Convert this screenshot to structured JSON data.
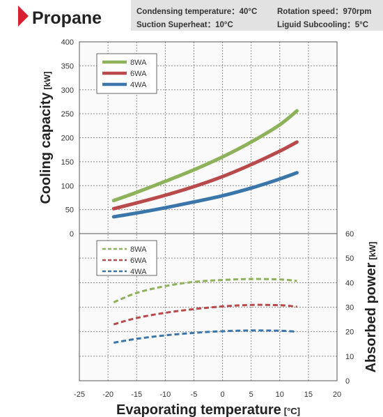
{
  "header": {
    "title": "Propane",
    "conditions": [
      "Condensing temperature：40°C",
      "Rotation speed：970rpm",
      "Suction Superheat：10°C",
      "Liguid Subcooling：5°C"
    ]
  },
  "colors": {
    "8WA": "#8db25a",
    "6WA": "#b94a4b",
    "4WA": "#3a76aa",
    "accent": "#d8202f"
  },
  "chart_data": [
    {
      "type": "line",
      "panel": "top",
      "ylabel": "Cooling capacity",
      "yunit": "[kW]",
      "xlim": [
        -25,
        20
      ],
      "ylim": [
        0,
        400
      ],
      "y_ticks": [
        0,
        50,
        100,
        150,
        200,
        250,
        300,
        350,
        400
      ],
      "grid": true,
      "legend": "top-left",
      "line_style": "solid",
      "series": [
        {
          "name": "8WA",
          "x": [
            -19,
            -15,
            -10,
            -5,
            0,
            5,
            10,
            13
          ],
          "values": [
            69,
            86,
            109,
            133,
            160,
            191,
            227,
            256
          ]
        },
        {
          "name": "6WA",
          "x": [
            -19,
            -15,
            -10,
            -5,
            0,
            5,
            10,
            13
          ],
          "values": [
            52,
            64,
            80,
            98,
            119,
            144,
            172,
            191
          ]
        },
        {
          "name": "4WA",
          "x": [
            -19,
            -15,
            -10,
            -5,
            0,
            5,
            10,
            13
          ],
          "values": [
            35,
            43,
            54,
            66,
            79,
            95,
            114,
            127
          ]
        }
      ]
    },
    {
      "type": "line",
      "panel": "bottom",
      "ylabel": "Absorbed power",
      "yunit": "[kW]",
      "xlabel": "Evaporating temperature",
      "xunit": "[°C]",
      "xlim": [
        -25,
        20
      ],
      "ylim": [
        0,
        60
      ],
      "x_ticks": [
        -25,
        -20,
        -15,
        -10,
        -5,
        0,
        5,
        10,
        15,
        20
      ],
      "y_ticks": [
        0,
        10,
        20,
        30,
        40,
        50,
        60
      ],
      "grid": true,
      "legend": "top-left",
      "line_style": "dashed",
      "series": [
        {
          "name": "8WA",
          "x": [
            -19,
            -15,
            -10,
            -5,
            0,
            5,
            10,
            13
          ],
          "values": [
            32.0,
            35.8,
            38.6,
            40.3,
            41.1,
            41.5,
            41.3,
            40.7
          ]
        },
        {
          "name": "6WA",
          "x": [
            -19,
            -15,
            -10,
            -5,
            0,
            5,
            10,
            13
          ],
          "values": [
            23.0,
            25.6,
            27.7,
            29.2,
            30.3,
            30.9,
            30.8,
            30.2
          ]
        },
        {
          "name": "4WA",
          "x": [
            -19,
            -15,
            -10,
            -5,
            0,
            5,
            10,
            13
          ],
          "values": [
            15.5,
            17.1,
            18.5,
            19.5,
            20.2,
            20.5,
            20.4,
            20.0
          ]
        }
      ]
    }
  ]
}
